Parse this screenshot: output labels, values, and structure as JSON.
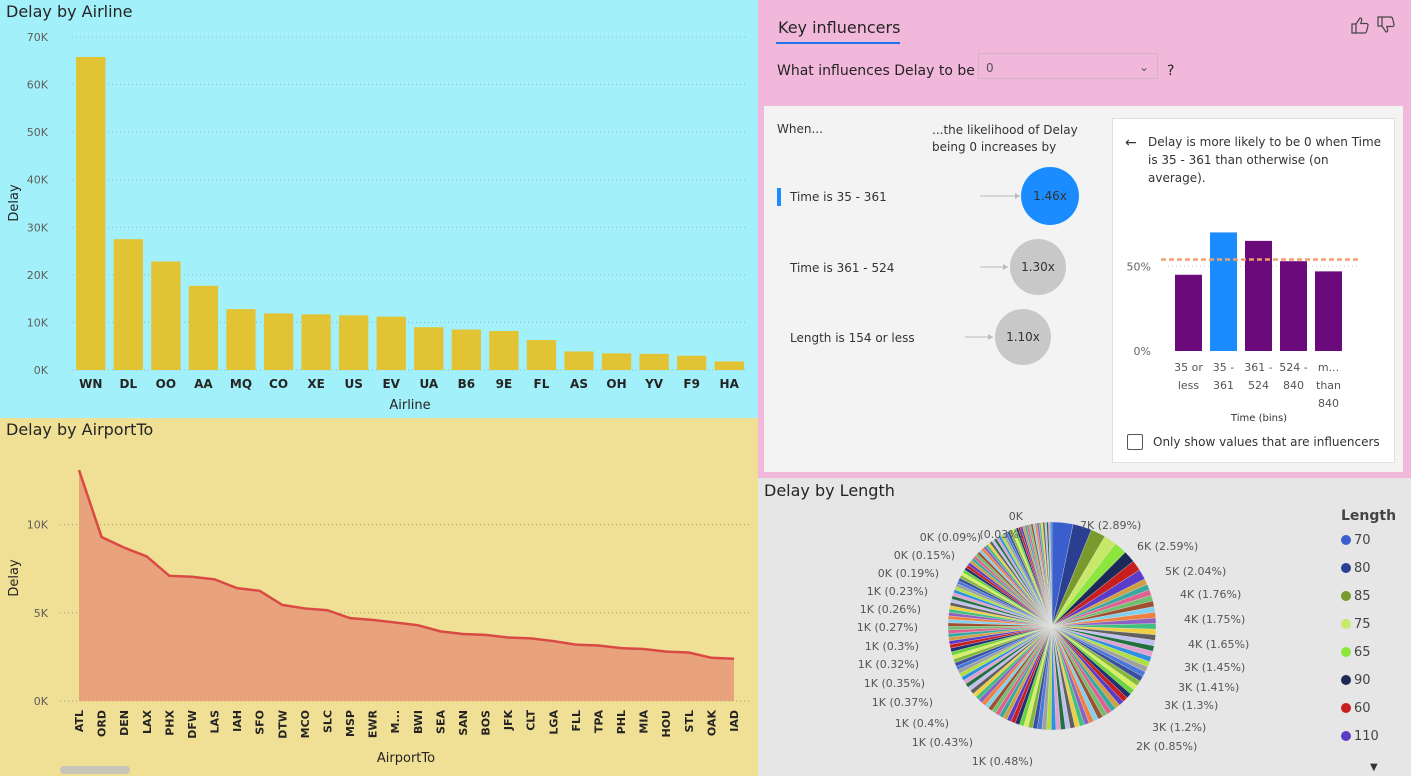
{
  "airline_chart": {
    "title": "Delay by Airline",
    "xlabel": "Airline",
    "ylabel": "Delay",
    "y_ticks": [
      "70K",
      "60K",
      "50K",
      "40K",
      "30K",
      "20K",
      "10K",
      "0K"
    ],
    "chart_data": {
      "type": "bar",
      "categories": [
        "WN",
        "DL",
        "OO",
        "AA",
        "MQ",
        "CO",
        "XE",
        "US",
        "EV",
        "UA",
        "B6",
        "9E",
        "FL",
        "AS",
        "OH",
        "YV",
        "F9",
        "HA"
      ],
      "values": [
        65800,
        27500,
        22800,
        17700,
        12800,
        11900,
        11700,
        11500,
        11200,
        9000,
        8500,
        8200,
        6300,
        3900,
        3500,
        3400,
        3000,
        1800
      ],
      "ylim": [
        0,
        70000
      ],
      "bar_color": "#e2c334"
    }
  },
  "airport_chart": {
    "title": "Delay by AirportTo",
    "xlabel": "AirportTo",
    "ylabel": "Delay",
    "y_ticks": [
      "10K",
      "5K",
      "0K"
    ],
    "chart_data": {
      "type": "area",
      "categories": [
        "ATL",
        "ORD",
        "DEN",
        "LAX",
        "PHX",
        "DFW",
        "LAS",
        "IAH",
        "SFO",
        "DTW",
        "MCO",
        "SLC",
        "MSP",
        "EWR",
        "M...",
        "BWI",
        "SEA",
        "SAN",
        "BOS",
        "JFK",
        "CLT",
        "LGA",
        "FLL",
        "TPA",
        "PHL",
        "MIA",
        "HOU",
        "STL",
        "OAK",
        "IAD"
      ],
      "values": [
        13100,
        9300,
        8700,
        8200,
        7100,
        7050,
        6900,
        6400,
        6250,
        5450,
        5250,
        5150,
        4700,
        4600,
        4450,
        4300,
        3950,
        3800,
        3750,
        3600,
        3550,
        3400,
        3200,
        3150,
        3000,
        2950,
        2800,
        2750,
        2450,
        2400
      ],
      "ylim": [
        0,
        13500
      ],
      "line_color": "#d94a44",
      "fill_color": "#e8a37c"
    }
  },
  "key_influencers": {
    "tab": "Key influencers",
    "question": "What influences Delay to be",
    "selected_value": "0",
    "qmark": "?",
    "when_header": "When...",
    "likelihood_header": "...the likelihood of Delay being 0 increases by",
    "back_icon": "←",
    "rows": [
      {
        "label": "Time is 35 - 361",
        "value": "1.46x",
        "selected": true
      },
      {
        "label": "Time is 361 - 524",
        "value": "1.30x",
        "selected": false
      },
      {
        "label": "Length is 154 or less",
        "value": "1.10x",
        "selected": false
      }
    ],
    "detail_text": "Delay is more likely to be 0 when Time is 35 - 361 than otherwise (on average).",
    "detail_xlabel": "Time (bins)",
    "detail_y_ticks": [
      "50%",
      "0%"
    ],
    "detail_categories": [
      [
        "35 or",
        "less"
      ],
      [
        "35 -",
        "361"
      ],
      [
        "361 -",
        "524"
      ],
      [
        "524 -",
        "840"
      ],
      [
        "m...",
        "than",
        "840"
      ]
    ],
    "chart_data": {
      "type": "bar",
      "categories": [
        "35 or less",
        "35 - 361",
        "361 - 524",
        "524 - 840",
        "m... than 840"
      ],
      "values": [
        45,
        70,
        65,
        53,
        47
      ],
      "average": 54,
      "ylim": [
        0,
        85
      ],
      "colors": [
        "#6b0a7a",
        "#1a8cff",
        "#6b0a7a",
        "#6b0a7a",
        "#6b0a7a"
      ]
    },
    "checkbox_label": "Only show values that are influencers",
    "colors": {
      "selected_bubble": "#1a8cff",
      "bubble": "#c8c8c8"
    }
  },
  "length_chart": {
    "title": "Delay by Length",
    "legend_title": "Length",
    "legend": [
      {
        "label": "70",
        "color": "#3a5fcd"
      },
      {
        "label": "80",
        "color": "#2a3f8f"
      },
      {
        "label": "85",
        "color": "#7a9a2e"
      },
      {
        "label": "75",
        "color": "#c8e86a"
      },
      {
        "label": "65",
        "color": "#8ce63c"
      },
      {
        "label": "90",
        "color": "#1c2a5a"
      },
      {
        "label": "60",
        "color": "#c81e1e"
      },
      {
        "label": "110",
        "color": "#5a3cc8"
      }
    ],
    "labels_right": [
      "7K (2.89%)",
      "6K (2.59%)",
      "5K (2.04%)",
      "4K (1.76%)",
      "4K (1.75%)",
      "4K (1.65%)",
      "3K (1.45%)",
      "3K (1.41%)",
      "3K (1.3%)",
      "3K (1.2%)",
      "2K (0.85%)"
    ],
    "labels_left": [
      "0K",
      "0K (0.09%)",
      "(0.03%)",
      "0K (0.15%)",
      "0K (0.19%)",
      "1K (0.23%)",
      "1K (0.26%)",
      "1K (0.27%)",
      "1K (0.3%)",
      "1K (0.32%)",
      "1K (0.35%)",
      "1K (0.37%)",
      "1K (0.4%)",
      "1K (0.43%)",
      "1K (0.48%)"
    ],
    "chart_data": {
      "type": "pie",
      "slices": [
        {
          "label": "70",
          "value": 2.89
        },
        {
          "label": "80",
          "value": 2.59
        },
        {
          "label": "85",
          "value": 2.04
        },
        {
          "label": "75",
          "value": 1.76
        },
        {
          "label": "65",
          "value": 1.75
        },
        {
          "label": "90",
          "value": 1.65
        },
        {
          "label": "60",
          "value": 1.45
        },
        {
          "label": "110",
          "value": 1.41
        }
      ]
    }
  }
}
